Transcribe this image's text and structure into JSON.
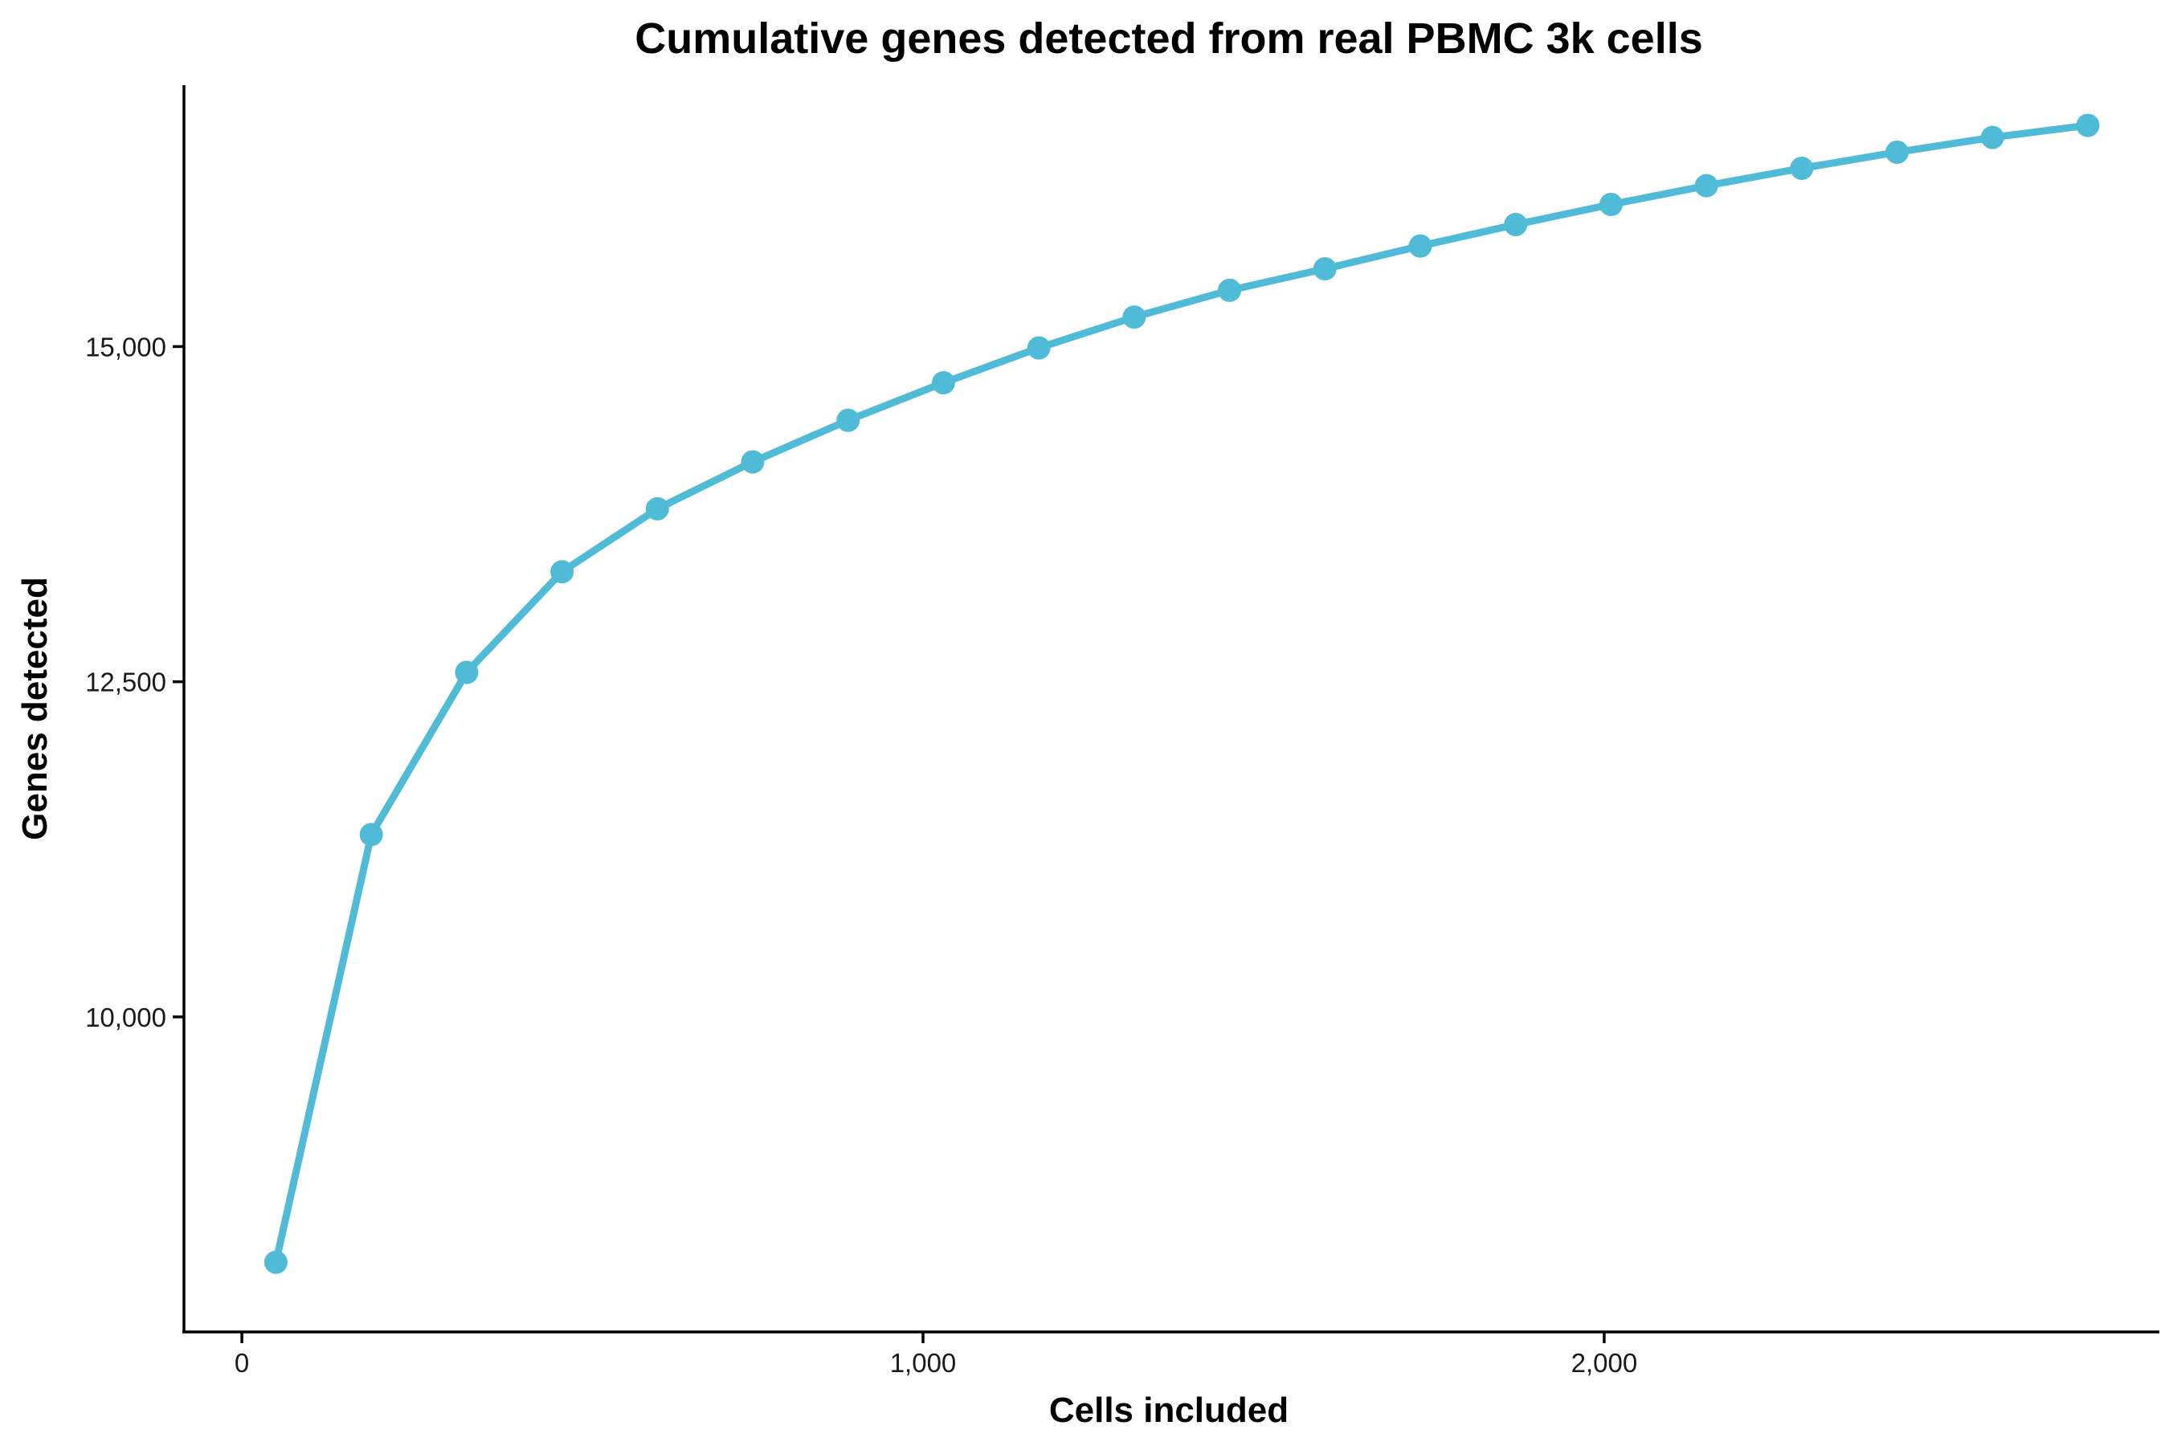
{
  "chart_data": {
    "type": "line",
    "title": "Cumulative genes detected from real PBMC 3k cells",
    "xlabel": "Cells included",
    "ylabel": "Genes detected",
    "xlim": [
      -85,
      2815
    ],
    "ylim": [
      7650,
      16950
    ],
    "x_ticks": [
      0,
      1000,
      2000
    ],
    "x_tick_labels": [
      "0",
      "1,000",
      "2,000"
    ],
    "y_ticks": [
      10000,
      12500,
      15000
    ],
    "y_tick_labels": [
      "10,000",
      "12,500",
      "15,000"
    ],
    "grid": false,
    "legend": "none",
    "series": [
      {
        "color": "#4fbbd6",
        "x": [
          50,
          190,
          330,
          470,
          610,
          750,
          890,
          1030,
          1170,
          1310,
          1450,
          1590,
          1730,
          1870,
          2010,
          2150,
          2290,
          2430,
          2570,
          2710
        ],
        "y": [
          8170,
          11360,
          12570,
          13320,
          13790,
          14140,
          14450,
          14730,
          14990,
          15220,
          15420,
          15580,
          15750,
          15910,
          16060,
          16200,
          16330,
          16450,
          16560,
          16650
        ]
      }
    ]
  }
}
